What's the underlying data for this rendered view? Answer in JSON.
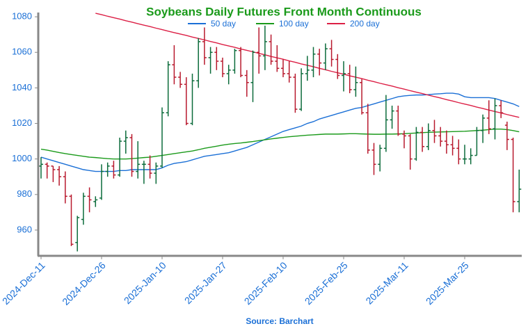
{
  "chart_data": {
    "type": "ohlc",
    "title": "Soybeans Daily Futures Front Month Continuous",
    "source": "Source: Barchart",
    "legend": "top",
    "grid": false,
    "ylim": [
      945.5,
      1082.4
    ],
    "yticks": [
      960,
      980,
      1000,
      1020,
      1040,
      1060,
      1080
    ],
    "up_color": "#0b6b3a",
    "down_color": "#b8192d",
    "categories": [
      "2024-Dec-11",
      null,
      null,
      null,
      null,
      null,
      null,
      null,
      null,
      null,
      "2024-Dec-26",
      null,
      null,
      null,
      null,
      null,
      null,
      null,
      null,
      null,
      "2025-Jan-10",
      null,
      null,
      null,
      null,
      null,
      null,
      null,
      null,
      null,
      "2025-Jan-27",
      null,
      null,
      null,
      null,
      null,
      null,
      null,
      null,
      null,
      "2025-Feb-10",
      null,
      null,
      null,
      null,
      null,
      null,
      null,
      null,
      null,
      "2025-Feb-25",
      null,
      null,
      null,
      null,
      null,
      null,
      null,
      null,
      null,
      "2025-Mar-11",
      null,
      null,
      null,
      null,
      null,
      null,
      null,
      null,
      null,
      "2025-Mar-25",
      null,
      null,
      null,
      null,
      null,
      null,
      null,
      null,
      null
    ],
    "open": [
      996,
      997,
      996,
      994,
      990,
      979,
      953,
      966,
      979,
      976,
      978,
      993,
      996,
      991,
      1010,
      1012,
      993,
      997,
      997,
      992,
      996,
      1026,
      1053,
      1046,
      1042,
      1020,
      1044,
      1066,
      1057,
      1060,
      1055,
      1048,
      1050,
      1061,
      1047,
      1043,
      1060,
      1058,
      1066,
      1055,
      1051,
      1048,
      1046,
      1028,
      1048,
      1050,
      1059,
      1054,
      1062,
      1056,
      1047,
      1048,
      1039,
      1043,
      1026,
      1005,
      997,
      1006,
      1022,
      1027,
      1014,
      1013,
      1000,
      1015,
      1007,
      1016,
      1013,
      1010,
      1008,
      1006,
      1000,
      1000,
      1002,
      1016,
      1023,
      1017,
      1030,
      1019,
      1011,
      976
    ],
    "high": [
      1001,
      998,
      996,
      996,
      993,
      980,
      968,
      981,
      984,
      979,
      997,
      998,
      999,
      1012,
      1016,
      1014,
      1010,
      999,
      1002,
      998,
      1029,
      1055,
      1064,
      1049,
      1046,
      1048,
      1068,
      1074,
      1063,
      1063,
      1057,
      1053,
      1062,
      1063,
      1050,
      1061,
      1074,
      1075,
      1070,
      1064,
      1056,
      1055,
      1048,
      1051,
      1058,
      1063,
      1062,
      1065,
      1067,
      1059,
      1055,
      1053,
      1052,
      1045,
      1031,
      1009,
      1008,
      1036,
      1030,
      1030,
      1016,
      1014,
      1018,
      1018,
      1020,
      1022,
      1018,
      1016,
      1013,
      1011,
      1008,
      1006,
      1018,
      1025,
      1033,
      1034,
      1033,
      1021,
      1012,
      994
    ],
    "low": [
      989,
      989,
      987,
      985,
      975,
      951,
      948,
      963,
      970,
      973,
      977,
      990,
      989,
      990,
      1003,
      990,
      989,
      986,
      989,
      986,
      995,
      1024,
      1042,
      1040,
      1019,
      1019,
      1040,
      1053,
      1048,
      1050,
      1046,
      1042,
      1048,
      1046,
      1035,
      1032,
      1048,
      1050,
      1053,
      1049,
      1046,
      1043,
      1026,
      1027,
      1044,
      1046,
      1047,
      1050,
      1052,
      1045,
      1038,
      1037,
      1035,
      1025,
      1003,
      991,
      993,
      1004,
      1017,
      1013,
      1006,
      994,
      999,
      1004,
      1005,
      1009,
      1007,
      1003,
      1002,
      997,
      997,
      997,
      1002,
      1009,
      1014,
      1011,
      1023,
      1005,
      970,
      970
    ],
    "close": [
      997,
      996,
      994,
      990,
      979,
      952,
      967,
      979,
      977,
      977,
      993,
      996,
      991,
      1010,
      1012,
      993,
      997,
      997,
      992,
      996,
      1026,
      1053,
      1046,
      1042,
      1020,
      1044,
      1066,
      1057,
      1060,
      1055,
      1048,
      1050,
      1061,
      1047,
      1043,
      1060,
      1058,
      1066,
      1055,
      1051,
      1048,
      1046,
      1028,
      1048,
      1050,
      1059,
      1054,
      1062,
      1056,
      1047,
      1048,
      1039,
      1043,
      1026,
      1005,
      997,
      1006,
      1022,
      1027,
      1014,
      1013,
      1000,
      1015,
      1007,
      1016,
      1013,
      1010,
      1008,
      1006,
      1000,
      1000,
      1002,
      1016,
      1023,
      1017,
      1030,
      1026,
      1011,
      976,
      983
    ],
    "series": [
      {
        "name": "50 day",
        "color": "#1a6fd6",
        "values": [
          1001,
          1000,
          999,
          998,
          997,
          996,
          995,
          994,
          993.5,
          993,
          993,
          993,
          993,
          993.5,
          993.5,
          994,
          994,
          994,
          994,
          994,
          995,
          996.5,
          997.5,
          998,
          998.5,
          999.5,
          1000.5,
          1001.5,
          1002,
          1002.5,
          1003,
          1003.5,
          1004.5,
          1005.5,
          1006.5,
          1008,
          1009.5,
          1011,
          1012.5,
          1014,
          1015.5,
          1016.5,
          1017.5,
          1018.5,
          1020,
          1021,
          1022.5,
          1023.5,
          1024.5,
          1025.5,
          1026.5,
          1027.5,
          1028.5,
          1029,
          1030,
          1031,
          1032,
          1033,
          1034,
          1035,
          1035.5,
          1035.8,
          1036,
          1036,
          1036.2,
          1036.5,
          1036.7,
          1037,
          1037,
          1036.5,
          1035,
          1034.5,
          1034.5,
          1034.5,
          1034.5,
          1034,
          1033,
          1032,
          1031,
          1029.5
        ]
      },
      {
        "name": "100 day",
        "color": "#1a9a1a",
        "values": [
          1005.5,
          1005,
          1004.3,
          1003.6,
          1003,
          1002.5,
          1002,
          1001.5,
          1001,
          1000.8,
          1000.5,
          1000.2,
          1000,
          1000,
          1000,
          1000.2,
          1000.5,
          1000.8,
          1001,
          1001.5,
          1002,
          1002.5,
          1003,
          1003.5,
          1004,
          1004.5,
          1005.2,
          1006,
          1006.6,
          1007.2,
          1007.8,
          1008.3,
          1008.7,
          1009,
          1009.4,
          1009.8,
          1010.3,
          1010.8,
          1011.3,
          1011.7,
          1012.1,
          1012.5,
          1012.8,
          1013.1,
          1013.4,
          1013.6,
          1013.8,
          1014,
          1014,
          1014,
          1014.1,
          1014.2,
          1014.2,
          1014.1,
          1014,
          1013.9,
          1013.9,
          1014,
          1014,
          1014.1,
          1014.2,
          1014.4,
          1014.6,
          1014.8,
          1015,
          1015.1,
          1015.2,
          1015.3,
          1015.4,
          1015.5,
          1015.6,
          1015.8,
          1016,
          1016.2,
          1016.5,
          1016.8,
          1016.8,
          1016.5,
          1016,
          1015.3
        ]
      },
      {
        "name": "200 day",
        "color": "#dc1f45",
        "values": [
          null,
          null,
          null,
          null,
          null,
          null,
          null,
          null,
          null,
          1082.0,
          1081.2,
          1080.3,
          1079.5,
          1078.7,
          1077.8,
          1077.0,
          1076.1,
          1075.3,
          1074.5,
          1073.6,
          1072.8,
          1071.9,
          1071.1,
          1070.3,
          1069.5,
          1068.6,
          1067.8,
          1067.0,
          1066.1,
          1065.3,
          1064.4,
          1063.6,
          1062.8,
          1061.9,
          1061.1,
          1060.3,
          1059.4,
          1058.6,
          1057.7,
          1056.9,
          1056.1,
          1055.2,
          1054.4,
          1053.5,
          1052.7,
          1051.9,
          1051.0,
          1050.2,
          1049.3,
          1048.5,
          1047.7,
          1046.8,
          1046.0,
          1045.2,
          1044.3,
          1043.5,
          1042.6,
          1041.8,
          1041.0,
          1040.1,
          1039.3,
          1038.4,
          1037.6,
          1036.8,
          1035.9,
          1035.1,
          1034.3,
          1033.4,
          1032.6,
          1031.7,
          1030.9,
          1030.1,
          1029.2,
          1028.4,
          1027.5,
          1026.7,
          1025.9,
          1025.0,
          1024.2,
          1023.4
        ]
      }
    ]
  }
}
